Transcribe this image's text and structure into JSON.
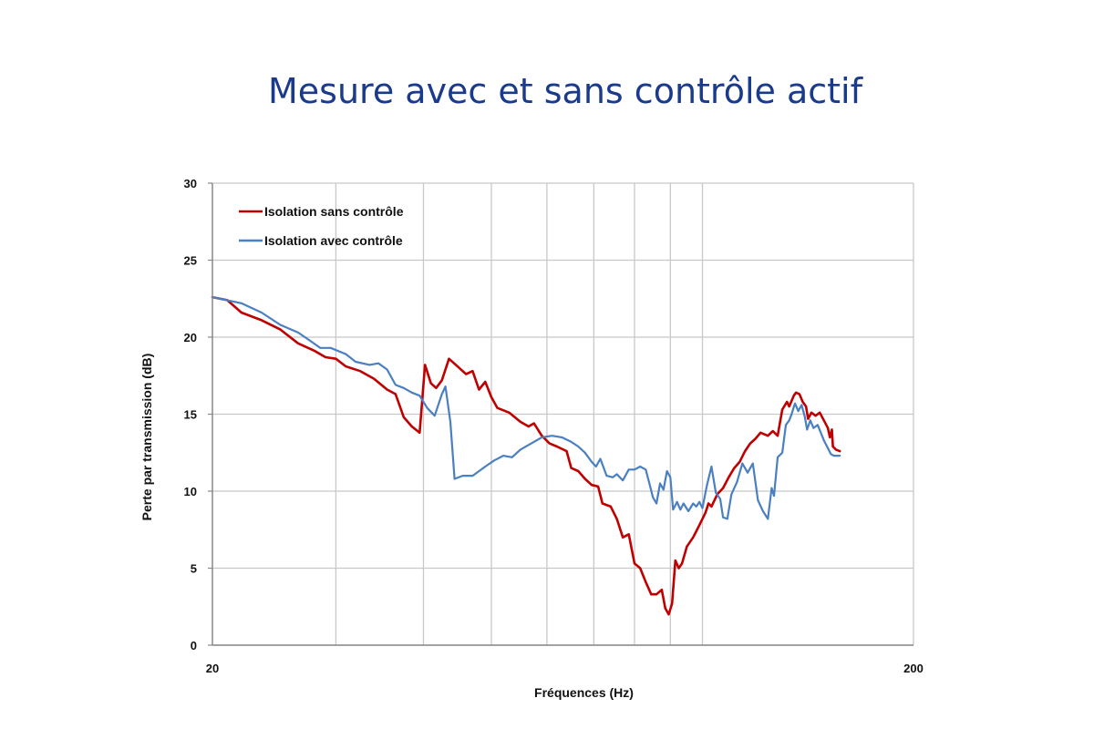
{
  "page": {
    "title": "Mesure avec et sans contrôle actif"
  },
  "chart_data": {
    "type": "line",
    "title": "Mesure avec et sans contrôle actif",
    "xlabel": "Fréquences (Hz)",
    "ylabel": "Perte par transmission (dB)",
    "x_scale": "log",
    "xlim": [
      20,
      200
    ],
    "ylim": [
      0,
      30
    ],
    "x_tick_labels": [
      "20",
      "200"
    ],
    "x_gridlines": [
      20,
      30,
      40,
      50,
      60,
      70,
      80,
      90,
      100,
      200
    ],
    "y_ticks": [
      0,
      5,
      10,
      15,
      20,
      25,
      30
    ],
    "grid": true,
    "legend_position": "top-left",
    "series": [
      {
        "name": "Isolation sans contrôle",
        "color": "#c00000",
        "points": [
          [
            20,
            22.6
          ],
          [
            21,
            22.4
          ],
          [
            22,
            21.6
          ],
          [
            23.5,
            21.1
          ],
          [
            25,
            20.5
          ],
          [
            26.5,
            19.6
          ],
          [
            28,
            19.1
          ],
          [
            29,
            18.7
          ],
          [
            30,
            18.6
          ],
          [
            31,
            18.1
          ],
          [
            32.5,
            17.8
          ],
          [
            34,
            17.3
          ],
          [
            35.5,
            16.6
          ],
          [
            36.5,
            16.3
          ],
          [
            37.5,
            14.8
          ],
          [
            38.5,
            14.2
          ],
          [
            39.5,
            13.8
          ],
          [
            40.2,
            18.2
          ],
          [
            41,
            17.0
          ],
          [
            41.7,
            16.7
          ],
          [
            42.5,
            17.2
          ],
          [
            43.5,
            18.6
          ],
          [
            45,
            18.0
          ],
          [
            46,
            17.6
          ],
          [
            47,
            17.8
          ],
          [
            48,
            16.6
          ],
          [
            49,
            17.1
          ],
          [
            50,
            16.1
          ],
          [
            51,
            15.4
          ],
          [
            53,
            15.1
          ],
          [
            55,
            14.5
          ],
          [
            56.5,
            14.2
          ],
          [
            57.5,
            14.4
          ],
          [
            59,
            13.6
          ],
          [
            60.5,
            13.1
          ],
          [
            62,
            12.9
          ],
          [
            64,
            12.6
          ],
          [
            65,
            11.5
          ],
          [
            66.5,
            11.3
          ],
          [
            68,
            10.8
          ],
          [
            69.5,
            10.4
          ],
          [
            71,
            10.3
          ],
          [
            72,
            9.2
          ],
          [
            74,
            9.0
          ],
          [
            75.5,
            8.2
          ],
          [
            77,
            7.0
          ],
          [
            78.5,
            7.2
          ],
          [
            80,
            5.3
          ],
          [
            81.5,
            5.0
          ],
          [
            83,
            4.1
          ],
          [
            84.5,
            3.3
          ],
          [
            86,
            3.3
          ],
          [
            87.5,
            3.6
          ],
          [
            88.5,
            2.4
          ],
          [
            89.5,
            2.0
          ],
          [
            90.5,
            2.7
          ],
          [
            91.5,
            5.5
          ],
          [
            92.5,
            5.0
          ],
          [
            93.5,
            5.3
          ],
          [
            95,
            6.4
          ],
          [
            97,
            7.0
          ],
          [
            99,
            7.8
          ],
          [
            101,
            8.6
          ],
          [
            102,
            9.2
          ],
          [
            103,
            9.0
          ],
          [
            105,
            9.8
          ],
          [
            107,
            10.2
          ],
          [
            109,
            10.9
          ],
          [
            111,
            11.5
          ],
          [
            113,
            11.9
          ],
          [
            115,
            12.6
          ],
          [
            117,
            13.1
          ],
          [
            119,
            13.4
          ],
          [
            121,
            13.8
          ],
          [
            124,
            13.6
          ],
          [
            126,
            13.9
          ],
          [
            128,
            13.6
          ],
          [
            130,
            15.3
          ],
          [
            132,
            15.8
          ],
          [
            133,
            15.5
          ],
          [
            135,
            16.2
          ],
          [
            136,
            16.4
          ],
          [
            137.5,
            16.3
          ],
          [
            139,
            15.8
          ],
          [
            140.5,
            15.5
          ],
          [
            141.5,
            14.7
          ],
          [
            143,
            15.1
          ],
          [
            145,
            14.9
          ],
          [
            147,
            15.1
          ],
          [
            149,
            14.6
          ],
          [
            151,
            14.1
          ],
          [
            152,
            13.5
          ],
          [
            153,
            14.0
          ],
          [
            153.5,
            12.9
          ],
          [
            155,
            12.7
          ],
          [
            157,
            12.6
          ]
        ]
      },
      {
        "name": "Isolation avec contrôle",
        "color": "#4a7fc1",
        "points": [
          [
            20,
            22.6
          ],
          [
            22,
            22.2
          ],
          [
            23.5,
            21.6
          ],
          [
            25,
            20.8
          ],
          [
            26.5,
            20.3
          ],
          [
            27.5,
            19.8
          ],
          [
            28.5,
            19.3
          ],
          [
            29.5,
            19.3
          ],
          [
            31,
            18.9
          ],
          [
            32,
            18.4
          ],
          [
            33.5,
            18.2
          ],
          [
            34.5,
            18.3
          ],
          [
            35.5,
            17.9
          ],
          [
            36.5,
            16.9
          ],
          [
            37.5,
            16.7
          ],
          [
            38.5,
            16.4
          ],
          [
            39.5,
            16.2
          ],
          [
            40.5,
            15.4
          ],
          [
            41.5,
            14.9
          ],
          [
            42.5,
            16.3
          ],
          [
            43,
            16.8
          ],
          [
            43.7,
            14.5
          ],
          [
            44.3,
            10.8
          ],
          [
            45.5,
            11.0
          ],
          [
            47,
            11.0
          ],
          [
            49,
            11.6
          ],
          [
            50.5,
            12.0
          ],
          [
            52,
            12.3
          ],
          [
            53.5,
            12.2
          ],
          [
            55,
            12.7
          ],
          [
            57,
            13.1
          ],
          [
            59,
            13.5
          ],
          [
            61,
            13.6
          ],
          [
            63,
            13.5
          ],
          [
            65,
            13.2
          ],
          [
            66.5,
            12.9
          ],
          [
            68,
            12.5
          ],
          [
            69.5,
            11.9
          ],
          [
            70.5,
            11.6
          ],
          [
            71.5,
            12.1
          ],
          [
            73,
            11.0
          ],
          [
            74.5,
            10.9
          ],
          [
            75.5,
            11.1
          ],
          [
            77,
            10.7
          ],
          [
            78.5,
            11.4
          ],
          [
            80,
            11.4
          ],
          [
            81.5,
            11.6
          ],
          [
            83,
            11.4
          ],
          [
            84,
            10.5
          ],
          [
            85,
            9.6
          ],
          [
            86,
            9.2
          ],
          [
            87,
            10.5
          ],
          [
            88,
            10.1
          ],
          [
            89,
            11.3
          ],
          [
            90,
            10.9
          ],
          [
            90.8,
            8.8
          ],
          [
            92,
            9.3
          ],
          [
            93,
            8.8
          ],
          [
            94,
            9.2
          ],
          [
            95.5,
            8.7
          ],
          [
            97,
            9.2
          ],
          [
            98,
            9.0
          ],
          [
            99,
            9.3
          ],
          [
            100,
            8.9
          ],
          [
            101.5,
            10.4
          ],
          [
            103,
            11.6
          ],
          [
            104.5,
            9.9
          ],
          [
            106,
            9.5
          ],
          [
            107,
            8.3
          ],
          [
            108.5,
            8.2
          ],
          [
            110,
            9.8
          ],
          [
            112,
            10.6
          ],
          [
            114,
            11.8
          ],
          [
            116,
            11.2
          ],
          [
            118,
            11.8
          ],
          [
            120,
            9.4
          ],
          [
            122,
            8.7
          ],
          [
            124,
            8.2
          ],
          [
            125.5,
            10.2
          ],
          [
            126.5,
            9.7
          ],
          [
            128,
            12.2
          ],
          [
            130,
            12.5
          ],
          [
            131.5,
            14.3
          ],
          [
            133,
            14.6
          ],
          [
            134,
            15.0
          ],
          [
            135.5,
            15.7
          ],
          [
            137,
            15.2
          ],
          [
            138.5,
            15.6
          ],
          [
            140,
            14.8
          ],
          [
            141,
            14.0
          ],
          [
            142.5,
            14.6
          ],
          [
            144,
            14.1
          ],
          [
            146,
            14.3
          ],
          [
            147.5,
            13.8
          ],
          [
            149,
            13.3
          ],
          [
            151,
            12.8
          ],
          [
            152.5,
            12.4
          ],
          [
            154,
            12.3
          ],
          [
            157,
            12.3
          ]
        ]
      }
    ]
  }
}
